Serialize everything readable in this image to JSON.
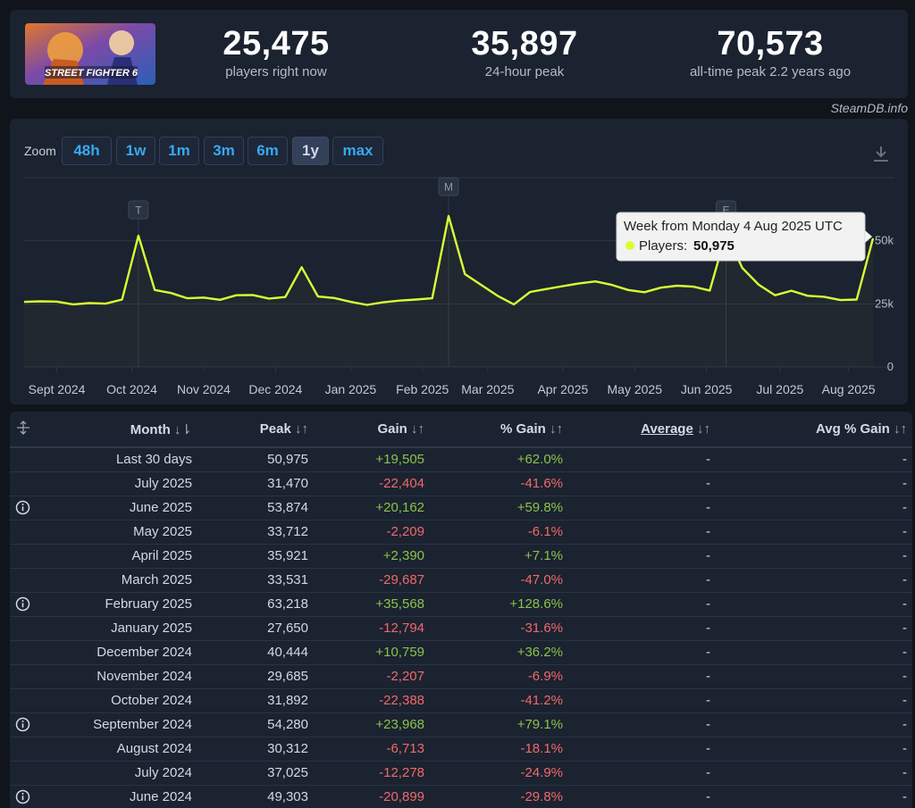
{
  "header": {
    "logo_text": "STREET FIGHTER 6",
    "stats": [
      {
        "value": "25,475",
        "label": "players right now"
      },
      {
        "value": "35,897",
        "label": "24-hour peak"
      },
      {
        "value": "70,573",
        "label": "all-time peak 2.2 years ago"
      }
    ],
    "brand": "SteamDB.info"
  },
  "zoom": {
    "label": "Zoom",
    "buttons": [
      "48h",
      "1w",
      "1m",
      "3m",
      "6m",
      "1y",
      "max"
    ],
    "active": "1y"
  },
  "chart_data": {
    "type": "line",
    "series": [
      {
        "name": "Players",
        "values": [
          25800,
          26000,
          25900,
          24800,
          25300,
          25100,
          26700,
          52000,
          30500,
          29300,
          27200,
          27500,
          26600,
          28400,
          28500,
          27100,
          27700,
          39500,
          27900,
          27300,
          25800,
          24600,
          25600,
          26300,
          26700,
          27200,
          59800,
          36800,
          32500,
          28200,
          24800,
          29700,
          30900,
          32000,
          33100,
          33900,
          32500,
          30500,
          29600,
          31400,
          32200,
          31800,
          30300,
          53000,
          39200,
          32600,
          28400,
          30200,
          28200,
          27800,
          26500,
          26700,
          50975
        ]
      }
    ],
    "x_ticks": [
      "Sept 2024",
      "Oct 2024",
      "Nov 2024",
      "Dec 2024",
      "Jan 2025",
      "Feb 2025",
      "Mar 2025",
      "Apr 2025",
      "May 2025",
      "Jun 2025",
      "Jul 2025",
      "Aug 2025"
    ],
    "y_ticks": [
      "0",
      "25k",
      "50k"
    ],
    "ylim": [
      0,
      75000
    ],
    "markers": [
      "T",
      "M",
      "E"
    ],
    "tooltip": {
      "title": "Week from Monday 4 Aug 2025 UTC",
      "series_label": "Players:",
      "value": "50,975"
    },
    "colors": {
      "line": "#d9ff33",
      "grid": "#2c3646",
      "tooltip_bg": "#f2f2f2"
    }
  },
  "table": {
    "headers": [
      {
        "label": "Month",
        "arrow": "↓⇂"
      },
      {
        "label": "Peak",
        "arrow": "↓↑"
      },
      {
        "label": "Gain",
        "arrow": "↓↑"
      },
      {
        "label": "% Gain",
        "arrow": "↓↑"
      },
      {
        "label": "Average",
        "arrow": "↓↑"
      },
      {
        "label": "Avg % Gain",
        "arrow": "↓↑"
      }
    ],
    "rows": [
      {
        "month": "Last 30 days",
        "peak": "50,975",
        "gain": "+19,505",
        "pct": "+62.0%",
        "avg": "-",
        "avgpct": "-",
        "info": false
      },
      {
        "month": "July 2025",
        "peak": "31,470",
        "gain": "-22,404",
        "pct": "-41.6%",
        "avg": "-",
        "avgpct": "-",
        "info": false
      },
      {
        "month": "June 2025",
        "peak": "53,874",
        "gain": "+20,162",
        "pct": "+59.8%",
        "avg": "-",
        "avgpct": "-",
        "info": true
      },
      {
        "month": "May 2025",
        "peak": "33,712",
        "gain": "-2,209",
        "pct": "-6.1%",
        "avg": "-",
        "avgpct": "-",
        "info": false
      },
      {
        "month": "April 2025",
        "peak": "35,921",
        "gain": "+2,390",
        "pct": "+7.1%",
        "avg": "-",
        "avgpct": "-",
        "info": false
      },
      {
        "month": "March 2025",
        "peak": "33,531",
        "gain": "-29,687",
        "pct": "-47.0%",
        "avg": "-",
        "avgpct": "-",
        "info": false
      },
      {
        "month": "February 2025",
        "peak": "63,218",
        "gain": "+35,568",
        "pct": "+128.6%",
        "avg": "-",
        "avgpct": "-",
        "info": true
      },
      {
        "month": "January 2025",
        "peak": "27,650",
        "gain": "-12,794",
        "pct": "-31.6%",
        "avg": "-",
        "avgpct": "-",
        "info": false
      },
      {
        "month": "December 2024",
        "peak": "40,444",
        "gain": "+10,759",
        "pct": "+36.2%",
        "avg": "-",
        "avgpct": "-",
        "info": false
      },
      {
        "month": "November 2024",
        "peak": "29,685",
        "gain": "-2,207",
        "pct": "-6.9%",
        "avg": "-",
        "avgpct": "-",
        "info": false
      },
      {
        "month": "October 2024",
        "peak": "31,892",
        "gain": "-22,388",
        "pct": "-41.2%",
        "avg": "-",
        "avgpct": "-",
        "info": false
      },
      {
        "month": "September 2024",
        "peak": "54,280",
        "gain": "+23,968",
        "pct": "+79.1%",
        "avg": "-",
        "avgpct": "-",
        "info": true
      },
      {
        "month": "August 2024",
        "peak": "30,312",
        "gain": "-6,713",
        "pct": "-18.1%",
        "avg": "-",
        "avgpct": "-",
        "info": false
      },
      {
        "month": "July 2024",
        "peak": "37,025",
        "gain": "-12,278",
        "pct": "-24.9%",
        "avg": "-",
        "avgpct": "-",
        "info": false
      },
      {
        "month": "June 2024",
        "peak": "49,303",
        "gain": "-20,899",
        "pct": "-29.8%",
        "avg": "-",
        "avgpct": "-",
        "info": true
      }
    ]
  }
}
